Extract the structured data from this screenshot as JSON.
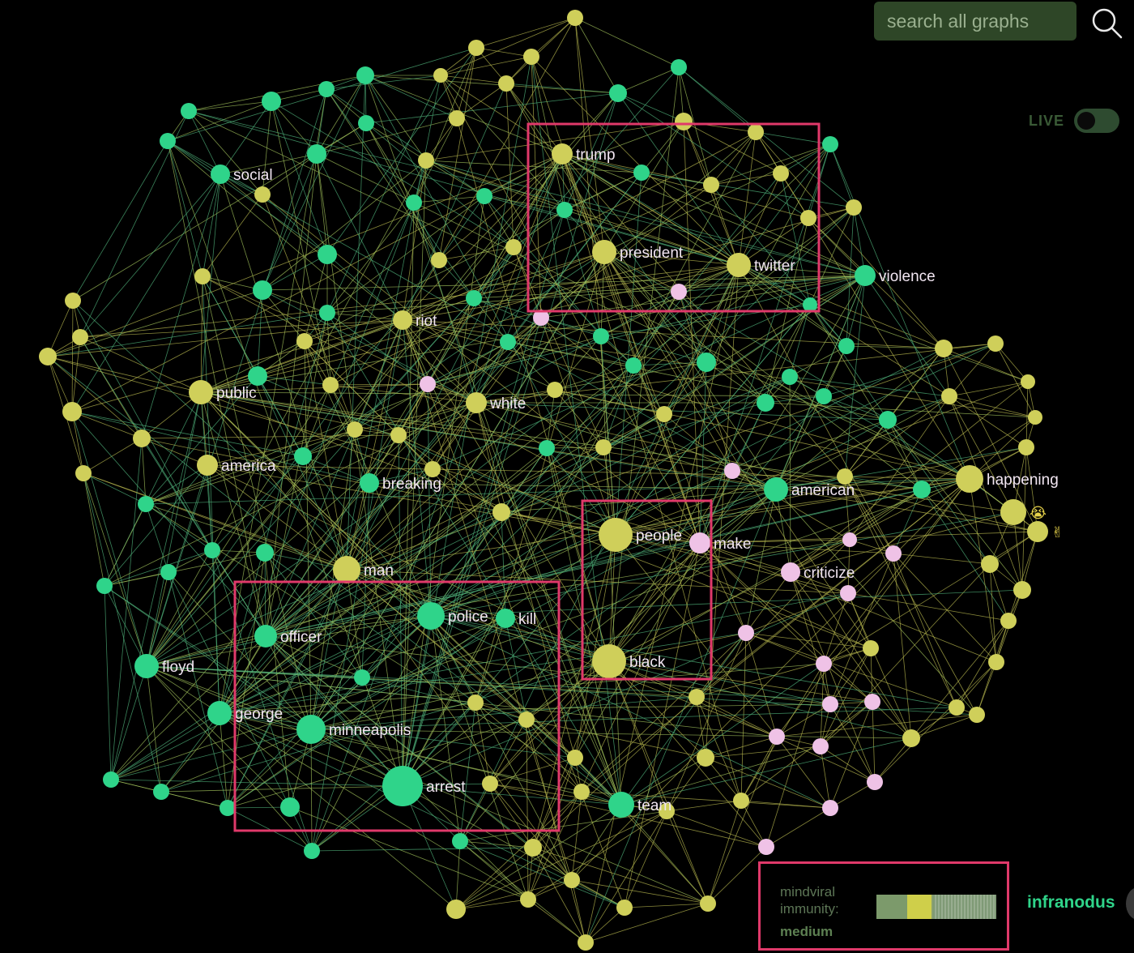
{
  "search": {
    "placeholder": "search all graphs"
  },
  "live": {
    "label": "LIVE",
    "enabled": false
  },
  "legend": {
    "line1": "mindviral",
    "line2": "immunity:",
    "level": "medium"
  },
  "brand": "infranodus",
  "colors": {
    "green": "#2fd48a",
    "yellow": "#cfcf5a",
    "pink": "#efc2e6",
    "highlight": "#e0396a"
  },
  "labels": {
    "social": "social",
    "riot": "riot",
    "public": "public",
    "america": "america",
    "breaking": "breaking",
    "white": "white",
    "trump": "trump",
    "president": "president",
    "twitter": "twitter",
    "violence": "violence",
    "american": "american",
    "happening": "happening",
    "people": "people",
    "make": "make",
    "criticize": "criticize",
    "black": "black",
    "man": "man",
    "officer": "officer",
    "police": "police",
    "kill": "kill",
    "floyd": "floyd",
    "george": "george",
    "minneapolis": "minneapolis",
    "arrest": "arrest",
    "team": "team",
    "emoji1": "😭",
    "emoji2": "✌"
  }
}
